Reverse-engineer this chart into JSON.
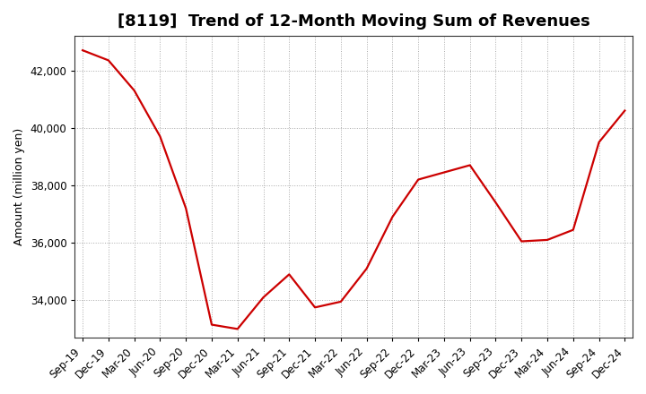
{
  "title": "[8119]  Trend of 12-Month Moving Sum of Revenues",
  "ylabel": "Amount (million yen)",
  "line_color": "#cc0000",
  "background_color": "#ffffff",
  "grid_color": "#aaaaaa",
  "x_labels": [
    "Sep-19",
    "Dec-19",
    "Mar-20",
    "Jun-20",
    "Sep-20",
    "Dec-20",
    "Mar-21",
    "Jun-21",
    "Sep-21",
    "Dec-21",
    "Mar-22",
    "Jun-22",
    "Sep-22",
    "Dec-22",
    "Mar-23",
    "Jun-23",
    "Sep-23",
    "Dec-23",
    "Mar-24",
    "Jun-24",
    "Sep-24",
    "Dec-24"
  ],
  "y_values": [
    42700,
    42350,
    41300,
    39700,
    37200,
    33150,
    33000,
    34100,
    34900,
    33750,
    33950,
    35100,
    36900,
    38200,
    38450,
    38700,
    37400,
    36050,
    36100,
    36450,
    39500,
    40600
  ],
  "ylim_min": 32700,
  "ylim_max": 43200,
  "yticks": [
    34000,
    36000,
    38000,
    40000,
    42000
  ],
  "title_fontsize": 13,
  "axis_fontsize": 9,
  "tick_fontsize": 8.5
}
